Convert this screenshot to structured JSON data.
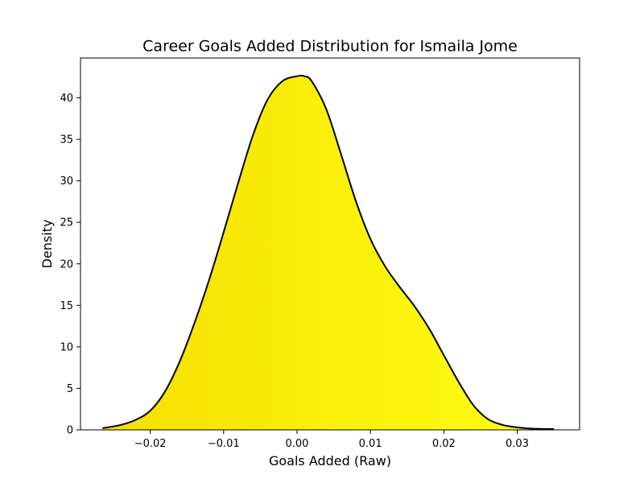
{
  "chart_data": {
    "type": "area",
    "title": "Career Goals Added Distribution for Ismaila Jome",
    "xlabel": "Goals Added (Raw)",
    "ylabel": "Density",
    "xlim": [
      -0.0295,
      0.0385
    ],
    "ylim": [
      0,
      44.8
    ],
    "x_ticks": [
      -0.02,
      -0.01,
      0.0,
      0.01,
      0.02,
      0.03
    ],
    "x_tick_labels": [
      "−0.02",
      "−0.01",
      "0.00",
      "0.01",
      "0.02",
      "0.03"
    ],
    "y_ticks": [
      0,
      5,
      10,
      15,
      20,
      25,
      30,
      35,
      40
    ],
    "y_tick_labels": [
      "0",
      "5",
      "10",
      "15",
      "20",
      "25",
      "30",
      "35",
      "40"
    ],
    "grid": false,
    "legend": "none",
    "colors": {
      "fill_left": "#f5df00",
      "fill_right": "#ffff14",
      "line": "#000000",
      "axis": "#000000",
      "background": "#ffffff"
    },
    "series": [
      {
        "x": [
          -0.0265,
          -0.024,
          -0.022,
          -0.02,
          -0.018,
          -0.016,
          -0.014,
          -0.012,
          -0.01,
          -0.008,
          -0.006,
          -0.004,
          -0.002,
          0.0,
          0.001,
          0.002,
          0.004,
          0.006,
          0.008,
          0.01,
          0.012,
          0.014,
          0.016,
          0.018,
          0.02,
          0.022,
          0.024,
          0.026,
          0.028,
          0.03,
          0.032,
          0.035
        ],
        "y": [
          0.2,
          0.6,
          1.2,
          2.3,
          4.6,
          8.2,
          12.8,
          18.0,
          23.8,
          29.8,
          35.5,
          39.8,
          42.0,
          42.6,
          42.6,
          42.0,
          38.6,
          33.2,
          27.6,
          23.0,
          19.7,
          17.2,
          14.9,
          12.2,
          9.0,
          5.8,
          3.0,
          1.3,
          0.6,
          0.3,
          0.15,
          0.1
        ]
      }
    ]
  }
}
